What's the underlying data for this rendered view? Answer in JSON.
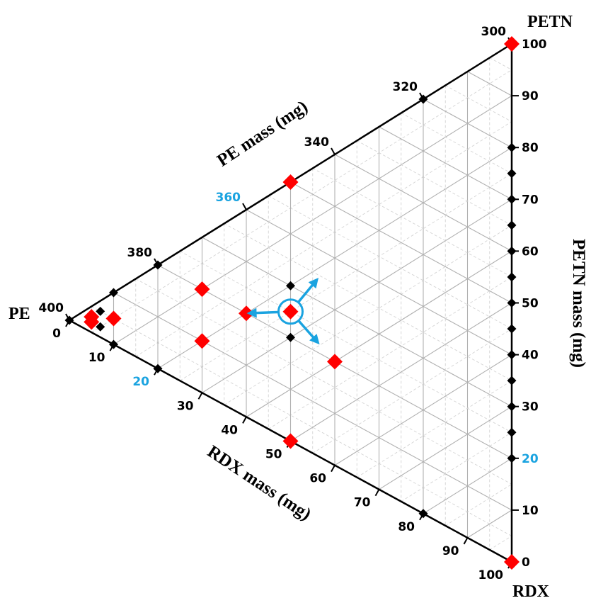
{
  "chart_data": {
    "type": "scatter",
    "subtype": "ternary",
    "vertices": {
      "top": "PETN",
      "left": "PE",
      "bottom": "RDX"
    },
    "axes": {
      "petn": {
        "title": "PETN mass (mg)",
        "ticks": [
          "0",
          "10",
          "20",
          "30",
          "40",
          "50",
          "60",
          "70",
          "80",
          "90",
          "100"
        ],
        "highlight": "20"
      },
      "rdx": {
        "title": "RDX mass (mg)",
        "ticks": [
          "0",
          "10",
          "20",
          "30",
          "40",
          "50",
          "60",
          "70",
          "80",
          "90",
          "100"
        ],
        "highlight": "20"
      },
      "pe": {
        "title": "PE mass (mg)",
        "ticks": [
          "400",
          "380",
          "360",
          "340",
          "320",
          "300"
        ],
        "highlight": "360"
      }
    },
    "grid": true,
    "colors": {
      "red": "#ff0000",
      "black": "#000000",
      "arrow": "#1aa3e0",
      "grid": "#b0b0b0"
    },
    "series": [
      {
        "color": "red",
        "points": [
          {
            "rdx": 0,
            "petn": 100
          },
          {
            "rdx": 100,
            "petn": 0
          },
          {
            "rdx": 0,
            "petn": 50
          },
          {
            "rdx": 50,
            "petn": 0
          },
          {
            "rdx": 5,
            "petn": 5
          },
          {
            "rdx": 2,
            "petn": 3
          },
          {
            "rdx": 3,
            "petn": 2
          },
          {
            "rdx": 10,
            "petn": 20
          },
          {
            "rdx": 20,
            "petn": 10
          },
          {
            "rdx": 20,
            "petn": 20
          },
          {
            "rdx": 40,
            "petn": 20
          },
          {
            "rdx": 25,
            "petn": 25
          }
        ]
      },
      {
        "color": "black",
        "points": [
          {
            "rdx": 0,
            "petn": 0
          },
          {
            "rdx": 2,
            "petn": 5
          },
          {
            "rdx": 5,
            "petn": 2
          },
          {
            "rdx": 0,
            "petn": 10
          },
          {
            "rdx": 10,
            "petn": 0
          },
          {
            "rdx": 0,
            "petn": 20
          },
          {
            "rdx": 20,
            "petn": 0
          },
          {
            "rdx": 0,
            "petn": 80
          },
          {
            "rdx": 80,
            "petn": 0
          },
          {
            "rdx": 20,
            "petn": 80
          },
          {
            "rdx": 80,
            "petn": 20
          },
          {
            "rdx": 20,
            "petn": 30
          },
          {
            "rdx": 30,
            "petn": 20
          },
          {
            "rdx": 25,
            "petn": 75
          },
          {
            "rdx": 30,
            "petn": 70
          },
          {
            "rdx": 35,
            "petn": 65
          },
          {
            "rdx": 40,
            "petn": 60
          },
          {
            "rdx": 45,
            "petn": 55
          },
          {
            "rdx": 50,
            "petn": 50
          },
          {
            "rdx": 55,
            "petn": 45
          },
          {
            "rdx": 60,
            "petn": 40
          },
          {
            "rdx": 65,
            "petn": 35
          },
          {
            "rdx": 70,
            "petn": 30
          },
          {
            "rdx": 75,
            "petn": 25
          }
        ]
      }
    ],
    "annotation": {
      "rdx": 25,
      "petn": 25,
      "arrows": [
        "PETN",
        "PE",
        "RDX"
      ]
    }
  }
}
